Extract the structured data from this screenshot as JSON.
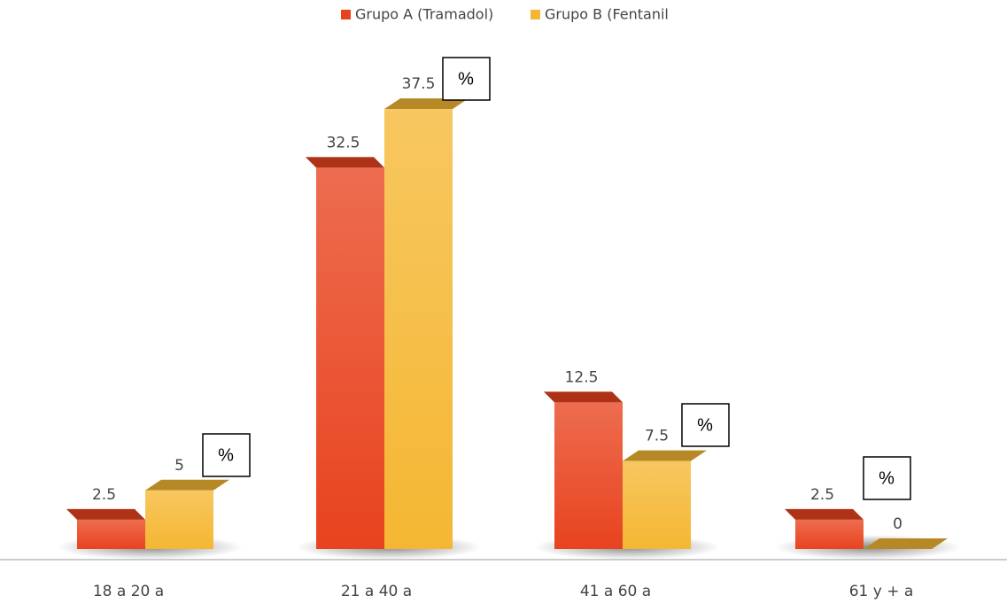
{
  "chart_data": {
    "type": "bar3d",
    "categories": [
      "18 a 20 a",
      "21 a 40 a",
      "41 a 60 a",
      "61 y + a"
    ],
    "series": [
      {
        "name": "Grupo A (Tramadol)",
        "color": "#e8431e",
        "values": [
          2.5,
          32.5,
          12.5,
          2.5
        ]
      },
      {
        "name": "Grupo B (Fentanil",
        "color": "#f5b733",
        "values": [
          5,
          37.5,
          7.5,
          0
        ]
      }
    ],
    "annotations": [
      "%",
      "%",
      "%",
      "%"
    ],
    "legend": "top"
  }
}
